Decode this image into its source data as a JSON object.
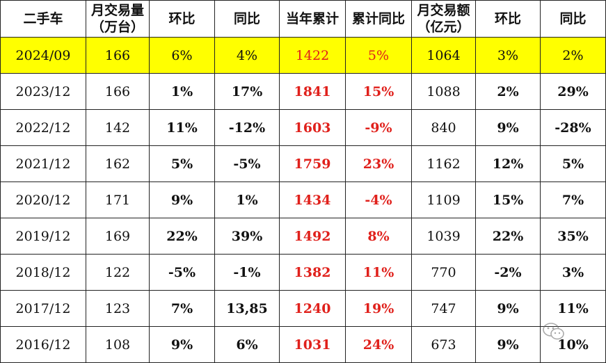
{
  "headers": [
    "二手车",
    "月交易量\n（万台）",
    "环比",
    "同比",
    "当年累计",
    "累计同比",
    "月交易额\n（亿元）",
    "环比",
    "同比"
  ],
  "rows": [
    [
      "2024/09",
      "166",
      "6%",
      "4%",
      "1422",
      "5%",
      "1064",
      "3%",
      "2%"
    ],
    [
      "2023/12",
      "166",
      "1%",
      "17%",
      "1841",
      "15%",
      "1088",
      "2%",
      "29%"
    ],
    [
      "2022/12",
      "142",
      "11%",
      "-12%",
      "1603",
      "-9%",
      "840",
      "9%",
      "-28%"
    ],
    [
      "2021/12",
      "162",
      "5%",
      "-5%",
      "1759",
      "23%",
      "1162",
      "12%",
      "5%"
    ],
    [
      "2020/12",
      "171",
      "9%",
      "1%",
      "1434",
      "-4%",
      "1109",
      "15%",
      "7%"
    ],
    [
      "2019/12",
      "169",
      "22%",
      "39%",
      "1492",
      "8%",
      "1039",
      "22%",
      "35%"
    ],
    [
      "2018/12",
      "122",
      "-5%",
      "-1%",
      "1382",
      "11%",
      "770",
      "-2%",
      "3%"
    ],
    [
      "2017/12",
      "123",
      "7%",
      "13,85",
      "1240",
      "19%",
      "747",
      "9%",
      "11%"
    ],
    [
      "2016/12",
      "108",
      "9%",
      "6%",
      "1031",
      "24%",
      "673",
      "9%",
      "10%"
    ]
  ],
  "colors": {
    "highlight": "#ffff00",
    "accent_red": "#e0201b"
  },
  "watermark_icon": "wechat-logo-icon"
}
